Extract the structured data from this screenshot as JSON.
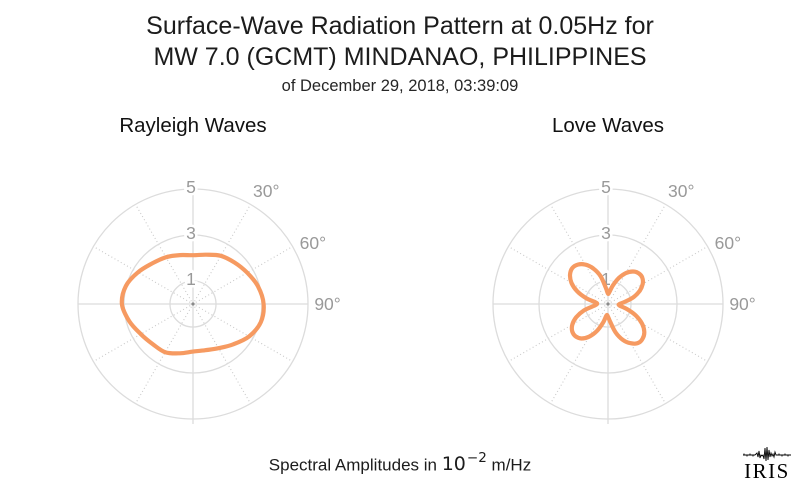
{
  "header": {
    "title_line1": "Surface-Wave Radiation Pattern at 0.05Hz for",
    "title_line2": "MW 7.0 (GCMT) MINDANAO, PHILIPPINES",
    "subtitle": "of December 29, 2018, 03:39:09"
  },
  "footer": {
    "prefix": "Spectral Amplitudes in",
    "math_base": "10",
    "math_exponent": "−2",
    "suffix": "m/Hz"
  },
  "logo": {
    "text": "IRIS"
  },
  "colors": {
    "pattern": "#F69A61",
    "grid": "#DCDCDC",
    "grid_dotted": "#C9C9C9",
    "tick_label": "#999999",
    "center_dot": "#8A8A8A",
    "title_text": "#1C1C1C"
  },
  "chart_data": [
    {
      "type": "line",
      "subtype": "polar-radiation-pattern",
      "title": "Rayleigh Waves",
      "series_name": "rayleigh-spectral-amplitude",
      "units": "10^-2 m/Hz",
      "r_max": 5,
      "grid": "on",
      "dotted_radial_step_deg": 30,
      "r_ticks": [
        {
          "value": 1,
          "label": "1"
        },
        {
          "value": 3,
          "label": "3"
        },
        {
          "value": 5,
          "label": "5"
        }
      ],
      "theta_ticks": [
        {
          "azimuth_deg": 30,
          "label": "30°"
        },
        {
          "azimuth_deg": 60,
          "label": "60°"
        },
        {
          "azimuth_deg": 90,
          "label": "90°"
        }
      ],
      "azimuth_deg": [
        0,
        15,
        30,
        45,
        60,
        75,
        90,
        105,
        120,
        135,
        150,
        165,
        180,
        195,
        210,
        225,
        240,
        255,
        270,
        285,
        300,
        315,
        330,
        345
      ],
      "r": [
        2.12,
        2.22,
        2.42,
        2.55,
        2.72,
        2.93,
        3.07,
        3.05,
        2.82,
        2.48,
        2.22,
        2.08,
        2.07,
        2.22,
        2.42,
        2.47,
        2.62,
        2.87,
        3.09,
        3.02,
        2.76,
        2.5,
        2.35,
        2.2
      ]
    },
    {
      "type": "line",
      "subtype": "polar-radiation-pattern",
      "title": "Love Waves",
      "series_name": "love-spectral-amplitude",
      "units": "10^-2 m/Hz",
      "r_max": 5,
      "grid": "on",
      "dotted_radial_step_deg": 30,
      "r_ticks": [
        {
          "value": 1,
          "label": "1"
        },
        {
          "value": 3,
          "label": "3"
        },
        {
          "value": 5,
          "label": "5"
        }
      ],
      "theta_ticks": [
        {
          "azimuth_deg": 30,
          "label": "30°"
        },
        {
          "azimuth_deg": 60,
          "label": "60°"
        },
        {
          "azimuth_deg": 90,
          "label": "90°"
        }
      ],
      "azimuth_deg": [
        0,
        7.5,
        15,
        22.5,
        30,
        37.5,
        45,
        52.5,
        60,
        67.5,
        75,
        82.5,
        90,
        97.5,
        105,
        112.5,
        120,
        127.5,
        135,
        142.5,
        150,
        157.5,
        165,
        172.5,
        180,
        187.5,
        195,
        202.5,
        210,
        217.5,
        225,
        232.5,
        240,
        247.5,
        255,
        262.5,
        270,
        277.5,
        285,
        292.5,
        300,
        307.5,
        315,
        322.5,
        330,
        337.5,
        345,
        352.5
      ],
      "r": [
        0.45,
        0.55,
        0.85,
        1.22,
        1.55,
        1.78,
        1.89,
        1.88,
        1.74,
        1.49,
        1.15,
        0.75,
        0.5,
        0.5,
        0.85,
        1.31,
        1.71,
        1.99,
        2.13,
        2.14,
        1.97,
        1.69,
        1.28,
        0.8,
        0.55,
        0.5,
        0.85,
        1.28,
        1.64,
        1.89,
        1.99,
        1.96,
        1.79,
        1.49,
        1.08,
        0.62,
        0.48,
        0.55,
        0.99,
        1.46,
        1.83,
        2.08,
        2.2,
        2.16,
        1.98,
        1.67,
        1.25,
        0.7
      ]
    }
  ]
}
